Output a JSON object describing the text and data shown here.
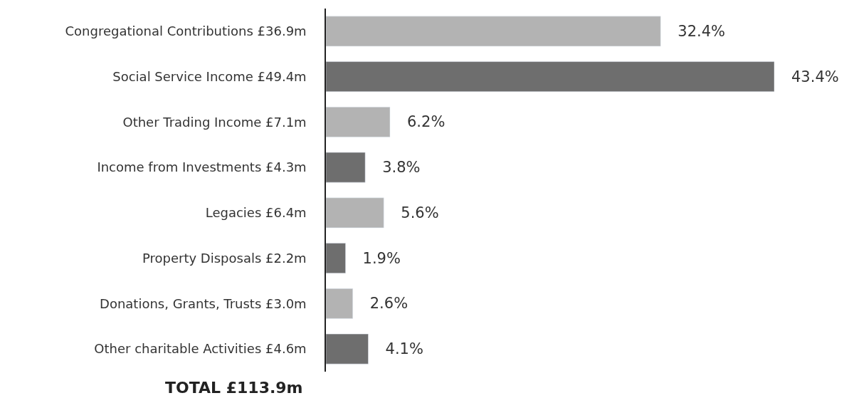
{
  "chart_data": {
    "type": "bar",
    "orientation": "horizontal",
    "categories": [
      "Congregational Contributions £36.9m",
      "Social Service Income £49.4m",
      "Other Trading Income £7.1m",
      "Income from Investments £4.3m",
      "Legacies £6.4m",
      "Property Disposals £2.2m",
      "Donations, Grants, Trusts £3.0m",
      "Other charitable Activities £4.6m"
    ],
    "values": [
      32.4,
      43.4,
      6.2,
      3.8,
      5.6,
      1.9,
      2.6,
      4.1
    ],
    "value_labels": [
      "32.4%",
      "43.4%",
      "6.2%",
      "3.8%",
      "5.6%",
      "1.9%",
      "2.6%",
      "4.1%"
    ],
    "colors": [
      "#b3b3b3",
      "#6e6e6e",
      "#b3b3b3",
      "#6e6e6e",
      "#b3b3b3",
      "#6e6e6e",
      "#b3b3b3",
      "#6e6e6e"
    ],
    "annotations": [
      "TOTAL £113.9m"
    ],
    "legend": false
  }
}
